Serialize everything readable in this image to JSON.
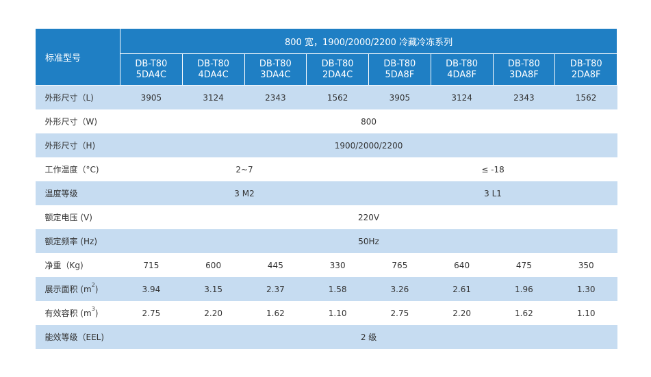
{
  "header": {
    "corner_label": "标准型号",
    "series_title": "800 宽，1900/2000/2200 冷藏冷冻系列",
    "models": [
      {
        "line1": "DB-T80",
        "line2": "5DA4C"
      },
      {
        "line1": "DB-T80",
        "line2": "4DA4C"
      },
      {
        "line1": "DB-T80",
        "line2": "3DA4C"
      },
      {
        "line1": "DB-T80",
        "line2": "2DA4C"
      },
      {
        "line1": "DB-T80",
        "line2": "5DA8F"
      },
      {
        "line1": "DB-T80",
        "line2": "4DA8F"
      },
      {
        "line1": "DB-T80",
        "line2": "3DA8F"
      },
      {
        "line1": "DB-T80",
        "line2": "2DA8F"
      }
    ]
  },
  "rows": {
    "length": {
      "label": "外形尺寸（L)",
      "values": [
        "3905",
        "3124",
        "2343",
        "1562",
        "3905",
        "3124",
        "2343",
        "1562"
      ]
    },
    "width": {
      "label": "外形尺寸（W)",
      "value": "800"
    },
    "height": {
      "label": "外形尺寸（H)",
      "value": "1900/2000/2200"
    },
    "temperature": {
      "label": "工作温度（°C)",
      "chill": "2~7",
      "freeze": "≤ -18"
    },
    "temp_class": {
      "label": "温度等级",
      "chill": "3 M2",
      "freeze": "3 L1"
    },
    "voltage": {
      "label": "额定电压 (V)",
      "value": "220V"
    },
    "frequency": {
      "label": "额定频率 (Hz)",
      "value": "50Hz"
    },
    "net_weight": {
      "label": "净重（Kg)",
      "values": [
        "715",
        "600",
        "445",
        "330",
        "765",
        "640",
        "475",
        "350"
      ]
    },
    "display_area": {
      "label": "展示面积 (m",
      "sup": "2",
      "label_end": ")",
      "values": [
        "3.94",
        "3.15",
        "2.37",
        "1.58",
        "3.26",
        "2.61",
        "1.96",
        "1.30"
      ]
    },
    "volume": {
      "label": "有效容积 (m",
      "sup": "3",
      "label_end": ")",
      "values": [
        "2.75",
        "2.20",
        "1.62",
        "1.10",
        "2.75",
        "2.20",
        "1.62",
        "1.10"
      ]
    },
    "energy": {
      "label": "能效等级（EEL)",
      "value": "2 级"
    }
  }
}
